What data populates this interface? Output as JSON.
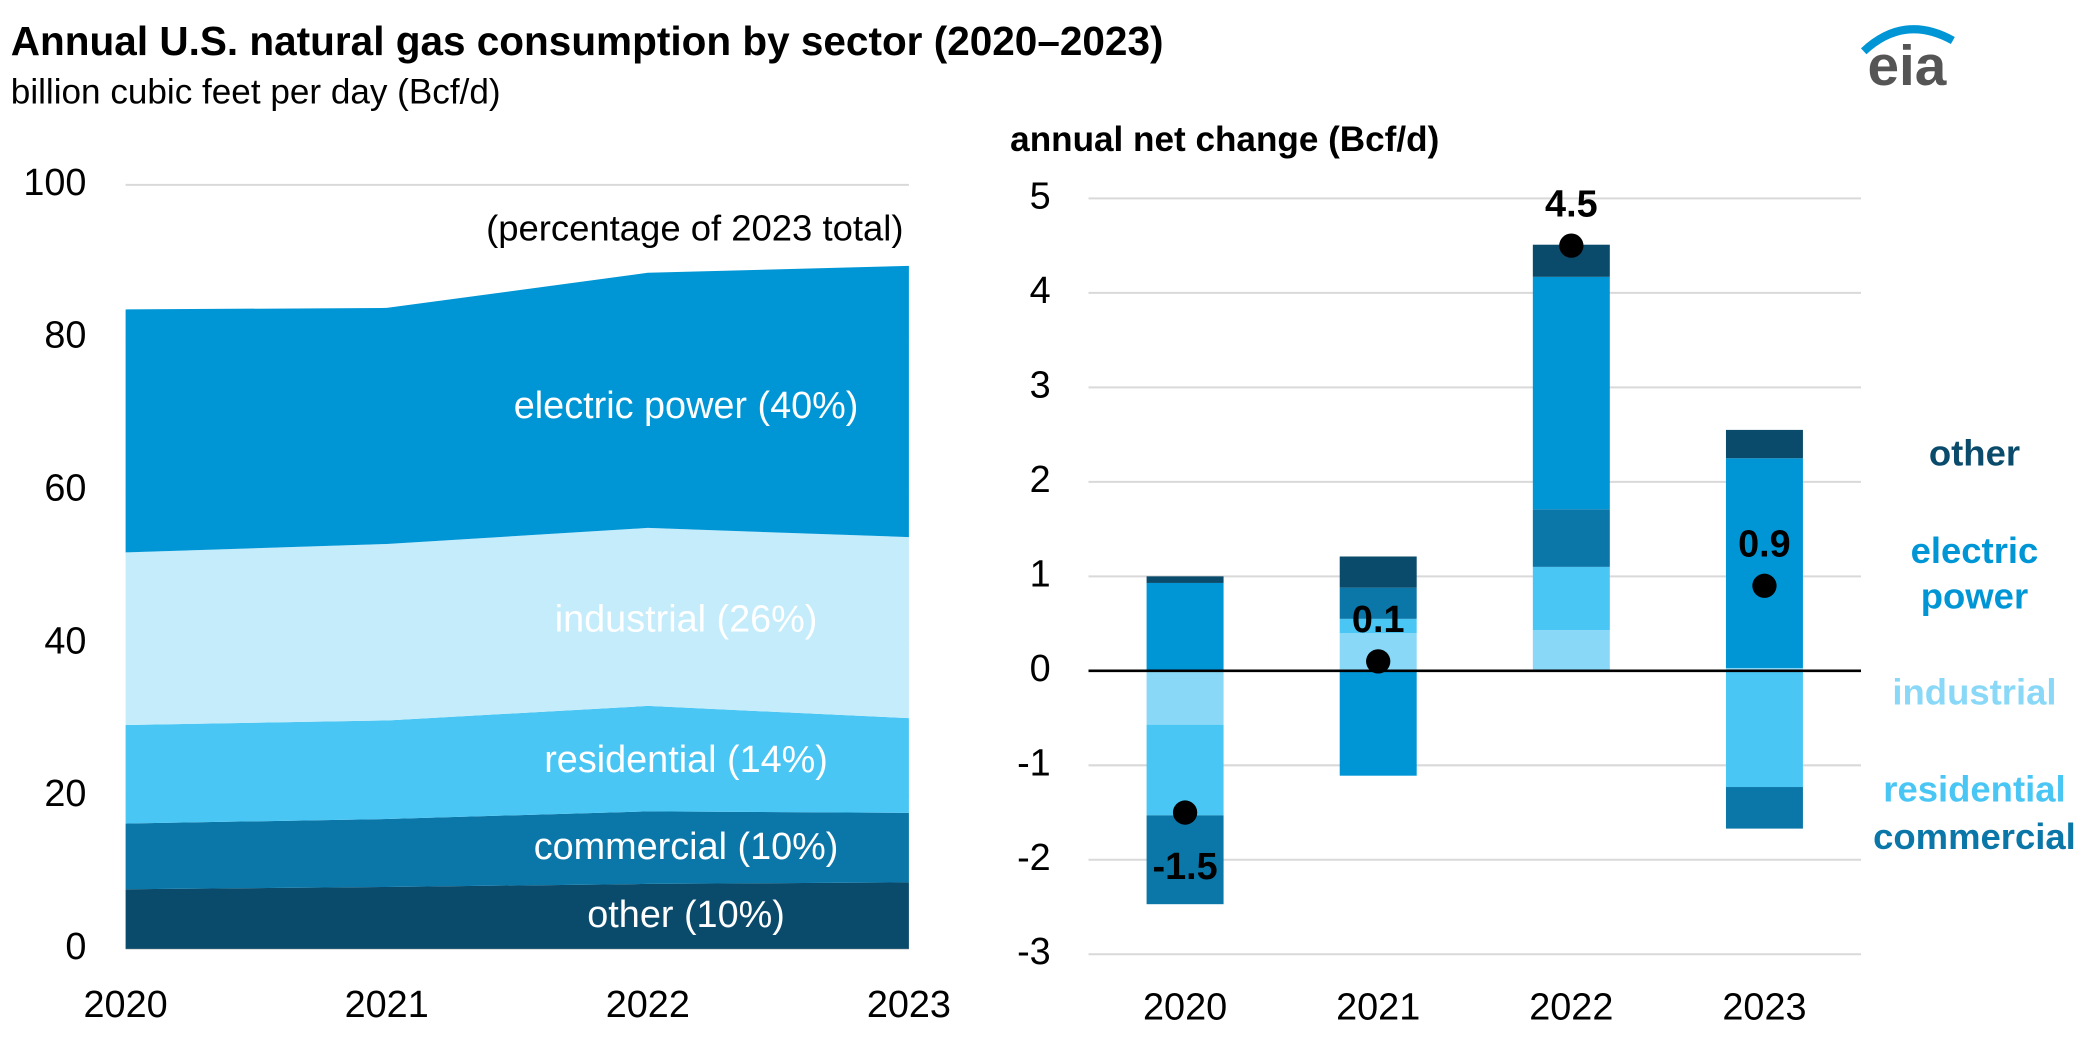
{
  "title": "Annual U.S. natural gas consumption by sector (2020–2023)",
  "subtitle": "billion cubic feet per day (Bcf/d)",
  "logo": "eia",
  "chart_data": [
    {
      "type": "area",
      "annotation": "(percentage of 2023 total)",
      "categories": [
        "2020",
        "2021",
        "2022",
        "2023"
      ],
      "ylim": [
        0,
        100
      ],
      "yticks": [
        0,
        20,
        40,
        60,
        80,
        100
      ],
      "grid": true,
      "series": [
        {
          "name": "other (10%)",
          "color": "#0a4a6b",
          "values": [
            7.8,
            8.1,
            8.5,
            8.7
          ]
        },
        {
          "name": "commercial (10%)",
          "color": "#0b77a8",
          "values": [
            8.6,
            8.9,
            9.5,
            9.1
          ]
        },
        {
          "name": "residential (14%)",
          "color": "#4ac6f4",
          "values": [
            12.9,
            12.9,
            13.8,
            12.4
          ]
        },
        {
          "name": "industrial (26%)",
          "color": "#c4ecfb",
          "values": [
            22.6,
            23.1,
            23.3,
            23.7
          ]
        },
        {
          "name": "electric power (40%)",
          "color": "#0096d6",
          "values": [
            31.8,
            30.9,
            33.4,
            35.5
          ]
        }
      ]
    },
    {
      "type": "bar",
      "y_label": "annual net change (Bcf/d)",
      "categories": [
        "2020",
        "2021",
        "2022",
        "2023"
      ],
      "ylim": [
        -3,
        5
      ],
      "yticks": [
        -3,
        -2,
        -1,
        0,
        1,
        2,
        3,
        4,
        5
      ],
      "grid": true,
      "net_values": [
        -1.5,
        0.1,
        4.5,
        0.9
      ],
      "series": [
        {
          "name": "industrial",
          "color": "#8ad8f7",
          "values": [
            -0.57,
            0.4,
            0.43,
            0.03
          ]
        },
        {
          "name": "residential",
          "color": "#4ac6f4",
          "values": [
            -0.96,
            0.15,
            0.67,
            -1.23
          ]
        },
        {
          "name": "commercial",
          "color": "#0b77a8",
          "values": [
            -0.94,
            0.33,
            0.61,
            -0.44
          ]
        },
        {
          "name": "electric power",
          "color": "#0096d6",
          "values": [
            0.93,
            -1.11,
            2.46,
            2.22
          ]
        },
        {
          "name": "other",
          "color": "#0a4a6b",
          "values": [
            0.07,
            0.33,
            0.34,
            0.3
          ]
        }
      ]
    }
  ]
}
